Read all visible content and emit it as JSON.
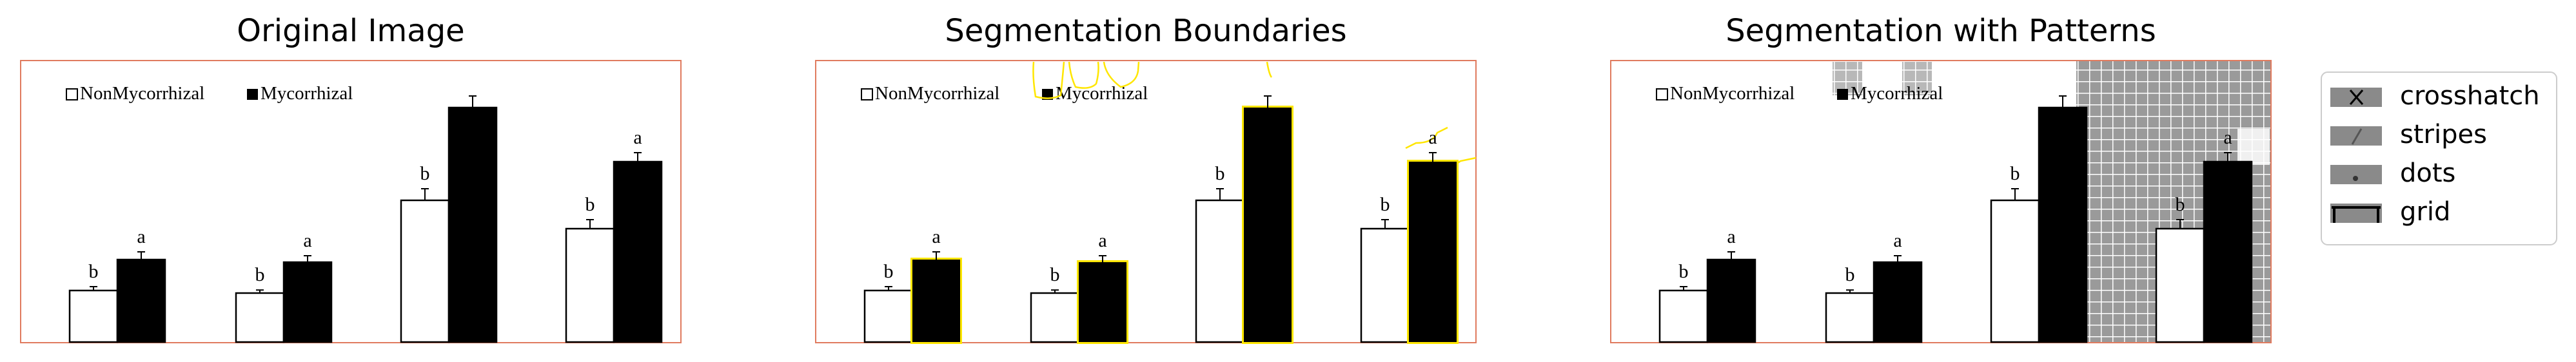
{
  "panels": [
    {
      "title": "Original Image",
      "overlay": "none"
    },
    {
      "title": "Segmentation Boundaries",
      "overlay": "boundaries"
    },
    {
      "title": "Segmentation with Patterns",
      "overlay": "patterns"
    }
  ],
  "legend": {
    "items": [
      {
        "label": "crosshatch",
        "icon": "crosshatch-swatch"
      },
      {
        "label": "stripes",
        "icon": "stripes-swatch"
      },
      {
        "label": "dots",
        "icon": "dots-swatch"
      },
      {
        "label": "grid",
        "icon": "grid-swatch"
      }
    ]
  },
  "colors": {
    "frame": "#e07b5f",
    "boundary": "#ffe600",
    "bar_dark": "#000000",
    "bar_light": "#ffffff",
    "pattern_gray": "#9a9a9a"
  },
  "chart_data": {
    "type": "bar",
    "categories": [
      "",
      "",
      "",
      ""
    ],
    "ylim": [
      0,
      100
    ],
    "series": [
      {
        "name": "NonMycorrhizal",
        "color": "#ffffff",
        "values": [
          20,
          19,
          55,
          44
        ],
        "errors": [
          1.5,
          1.2,
          4.5,
          3.5
        ],
        "labels": [
          "b",
          "b",
          "b",
          "b"
        ]
      },
      {
        "name": "Mycorrhizal",
        "color": "#000000",
        "values": [
          32,
          31,
          91,
          70
        ],
        "errors": [
          3,
          2.5,
          4.5,
          3.5
        ],
        "labels": [
          "a",
          "a",
          "",
          "a"
        ]
      }
    ]
  }
}
